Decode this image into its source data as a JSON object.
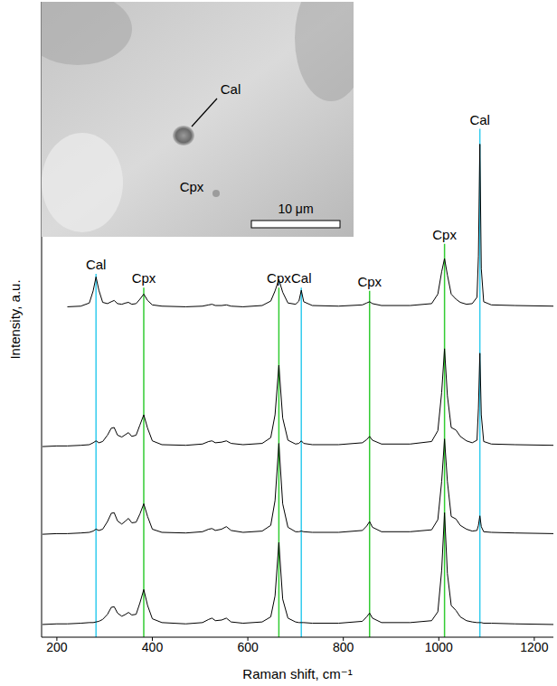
{
  "chart_data": {
    "type": "line",
    "x_label": "Raman shift, cm⁻¹",
    "y_label": "Intensity, a.u.",
    "xlim": [
      168,
      1240
    ],
    "ylim": [
      0,
      100
    ],
    "xticks": [
      200,
      400,
      600,
      800,
      1000,
      1200
    ],
    "grid": false,
    "tick_labels": "x",
    "x": [
      170,
      200,
      222,
      250,
      268,
      276,
      282,
      288,
      296,
      306,
      314,
      320,
      327,
      336,
      344,
      350,
      357,
      366,
      374,
      382,
      390,
      400,
      420,
      470,
      505,
      518,
      525,
      532,
      545,
      555,
      565,
      590,
      630,
      648,
      657,
      665,
      673,
      684,
      700,
      707,
      712,
      717,
      735,
      790,
      840,
      849,
      855,
      861,
      880,
      940,
      985,
      998,
      1006,
      1012,
      1018,
      1026,
      1036,
      1045,
      1058,
      1070,
      1080,
      1083,
      1086,
      1089,
      1094,
      1110,
      1160,
      1240
    ],
    "series": [
      {
        "color": "#000000",
        "values": [
          null,
          null,
          52.0,
          52.1,
          52.6,
          54.5,
          56.7,
          54.6,
          52.7,
          52.5,
          52.8,
          53.0,
          52.5,
          52.4,
          52.6,
          52.7,
          52.4,
          52.5,
          53.2,
          54.0,
          53.0,
          52.3,
          52.1,
          52.0,
          52.1,
          52.3,
          52.4,
          52.2,
          52.2,
          52.3,
          52.1,
          52.0,
          52.2,
          52.9,
          54.5,
          56.3,
          54.3,
          52.6,
          52.4,
          52.9,
          54.6,
          52.8,
          52.2,
          52.1,
          52.3,
          52.6,
          52.8,
          52.5,
          52.2,
          52.2,
          52.5,
          54.0,
          57.5,
          59.6,
          57.0,
          54.0,
          53.2,
          52.7,
          52.4,
          52.5,
          53.5,
          60.0,
          77.6,
          58.0,
          52.8,
          52.3,
          52.2,
          52.1
        ]
      },
      {
        "color": "#000000",
        "values": [
          30.0,
          30.1,
          30.1,
          30.2,
          30.3,
          30.6,
          30.9,
          30.6,
          30.8,
          31.8,
          32.9,
          33.0,
          31.8,
          31.5,
          31.9,
          32.2,
          31.6,
          31.8,
          33.4,
          35.0,
          32.9,
          30.9,
          30.3,
          30.2,
          30.4,
          30.8,
          30.9,
          30.6,
          30.7,
          30.9,
          30.5,
          30.3,
          30.5,
          31.4,
          35.0,
          42.8,
          34.5,
          31.0,
          30.4,
          30.5,
          30.9,
          30.5,
          30.3,
          30.3,
          30.6,
          31.1,
          31.6,
          31.0,
          30.4,
          30.4,
          30.8,
          32.5,
          38.5,
          45.4,
          38.0,
          33.0,
          32.6,
          31.6,
          30.9,
          30.6,
          31.0,
          36.0,
          44.7,
          35.0,
          30.8,
          30.4,
          30.3,
          30.2
        ]
      },
      {
        "color": "#000000",
        "values": [
          16.2,
          16.3,
          16.3,
          16.4,
          16.5,
          16.7,
          17.0,
          16.8,
          17.0,
          18.2,
          19.5,
          19.6,
          18.3,
          17.8,
          18.3,
          18.7,
          18.0,
          18.1,
          19.4,
          21.0,
          19.0,
          17.0,
          16.5,
          16.4,
          16.6,
          17.0,
          17.1,
          16.8,
          17.0,
          17.4,
          16.8,
          16.5,
          16.7,
          17.6,
          21.5,
          30.5,
          21.0,
          17.3,
          16.6,
          16.6,
          16.7,
          16.6,
          16.5,
          16.5,
          16.8,
          17.5,
          18.2,
          17.3,
          16.6,
          16.6,
          16.9,
          18.5,
          24.5,
          31.2,
          24.5,
          19.0,
          18.6,
          17.6,
          17.0,
          16.7,
          16.8,
          17.6,
          19.1,
          17.4,
          16.6,
          16.5,
          16.4,
          16.3
        ]
      },
      {
        "color": "#000000",
        "values": [
          2.0,
          2.1,
          2.1,
          2.2,
          2.3,
          2.3,
          2.4,
          2.5,
          2.8,
          3.6,
          4.7,
          4.8,
          3.8,
          3.3,
          3.6,
          3.9,
          3.5,
          3.6,
          5.4,
          7.5,
          5.0,
          2.9,
          2.3,
          2.1,
          2.3,
          2.8,
          3.0,
          2.6,
          2.7,
          3.0,
          2.4,
          2.2,
          2.4,
          3.2,
          6.5,
          14.9,
          6.0,
          3.0,
          2.4,
          2.3,
          2.3,
          2.3,
          2.2,
          2.2,
          2.5,
          3.2,
          3.8,
          3.0,
          2.3,
          2.3,
          2.6,
          4.0,
          10.5,
          19.6,
          10.0,
          5.0,
          4.2,
          3.2,
          2.6,
          2.4,
          2.3,
          2.3,
          2.3,
          2.3,
          2.2,
          2.2,
          2.1,
          2.0
        ]
      }
    ],
    "reference_lines": [
      {
        "x": 282,
        "label": "Cal",
        "color": "#33ccee",
        "y_end": 57.2
      },
      {
        "x": 382,
        "label": "Cpx",
        "color": "#33cc33",
        "y_end": 55.0
      },
      {
        "x": 665,
        "label": "Cpx",
        "color": "#33cc33",
        "y_end": 55.0
      },
      {
        "x": 712,
        "label": "Cal",
        "color": "#33ccee",
        "y_end": 55.0
      },
      {
        "x": 855,
        "label": "Cpx",
        "color": "#33cc33",
        "y_end": 54.5
      },
      {
        "x": 1012,
        "label": "Cpx",
        "color": "#33cc33",
        "y_end": 61.9
      },
      {
        "x": 1086,
        "label": "Cal",
        "color": "#33ccee",
        "y_end": 80.0
      }
    ],
    "inset": {
      "labels": {
        "inclusion": "Cal",
        "host": "Cpx"
      },
      "scale_bar_label": "10 μm"
    }
  }
}
